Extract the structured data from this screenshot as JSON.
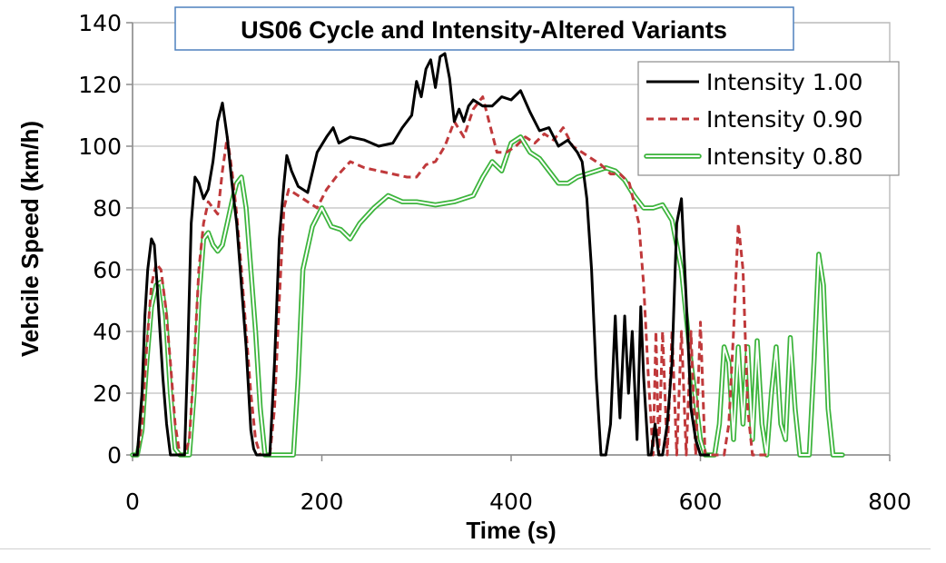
{
  "chart_data": {
    "type": "line",
    "title": "US06 Cycle and Intensity-Altered Variants",
    "xlabel": "Time (s)",
    "ylabel": "Vehcile Speed (km/h)",
    "xlim": [
      0,
      800
    ],
    "ylim": [
      0,
      140
    ],
    "xticks": [
      "0",
      "200",
      "400",
      "600",
      "800"
    ],
    "yticks": [
      "0",
      "20",
      "40",
      "60",
      "80",
      "100",
      "120",
      "140"
    ],
    "grid": "horizontal",
    "legend_position": "top-right",
    "series": [
      {
        "name": "Intensity 1.00",
        "color": "#000000",
        "style": "solid",
        "x": [
          0,
          5,
          10,
          13,
          16,
          20,
          23,
          26,
          29,
          32,
          36,
          40,
          45,
          50,
          55,
          58,
          62,
          66,
          70,
          75,
          80,
          85,
          90,
          95,
          100,
          105,
          110,
          115,
          120,
          125,
          128,
          131,
          135,
          140,
          145,
          150,
          155,
          160,
          163,
          168,
          175,
          185,
          195,
          205,
          212,
          218,
          230,
          245,
          260,
          275,
          285,
          295,
          300,
          305,
          310,
          315,
          320,
          325,
          330,
          335,
          340,
          345,
          350,
          355,
          360,
          370,
          380,
          390,
          400,
          410,
          420,
          430,
          440,
          450,
          460,
          470,
          475,
          480,
          485,
          490,
          495,
          500,
          505,
          510,
          512,
          515,
          520,
          524,
          528,
          533,
          537,
          540,
          545,
          548,
          552,
          556,
          560,
          565,
          570,
          575,
          580,
          585,
          590,
          595,
          600,
          610
        ],
        "y": [
          0,
          0,
          20,
          45,
          60,
          70,
          68,
          55,
          40,
          25,
          10,
          0,
          0,
          0,
          0,
          30,
          75,
          90,
          88,
          83,
          86,
          95,
          108,
          114,
          103,
          88,
          75,
          55,
          35,
          8,
          2,
          0,
          0,
          0,
          0,
          30,
          70,
          88,
          97,
          92,
          87,
          85,
          98,
          103,
          106,
          101,
          103,
          102,
          100,
          101,
          106,
          110,
          121,
          116,
          125,
          128,
          119,
          129,
          130,
          122,
          108,
          112,
          108,
          113,
          115,
          113,
          113,
          116,
          115,
          118,
          111,
          105,
          106,
          100,
          102,
          98,
          95,
          83,
          60,
          25,
          0,
          0,
          10,
          45,
          30,
          12,
          45,
          20,
          40,
          5,
          48,
          25,
          0,
          0,
          10,
          0,
          0,
          10,
          30,
          75,
          83,
          50,
          15,
          5,
          0,
          0
        ]
      },
      {
        "name": "Intensity 0.90",
        "color": "#c0393b",
        "style": "dashed",
        "x": [
          0,
          5,
          10,
          15,
          20,
          25,
          30,
          35,
          40,
          45,
          50,
          55,
          60,
          65,
          70,
          75,
          80,
          85,
          90,
          95,
          100,
          105,
          110,
          115,
          120,
          125,
          130,
          135,
          140,
          145,
          150,
          155,
          160,
          165,
          175,
          185,
          195,
          205,
          215,
          230,
          245,
          260,
          275,
          290,
          300,
          310,
          320,
          330,
          340,
          350,
          360,
          370,
          375,
          385,
          395,
          405,
          415,
          425,
          435,
          445,
          455,
          465,
          475,
          485,
          495,
          505,
          515,
          525,
          535,
          540,
          545,
          550,
          553,
          556,
          560,
          565,
          570,
          575,
          580,
          585,
          590,
          595,
          600,
          605,
          610,
          615,
          620,
          625,
          630,
          635,
          640,
          645,
          650,
          655,
          660,
          665,
          670
        ],
        "y": [
          0,
          0,
          10,
          35,
          55,
          62,
          60,
          48,
          30,
          10,
          0,
          0,
          5,
          30,
          60,
          75,
          82,
          80,
          78,
          92,
          103,
          92,
          78,
          60,
          40,
          20,
          5,
          0,
          0,
          0,
          15,
          50,
          80,
          86,
          84,
          82,
          80,
          86,
          90,
          95,
          93,
          92,
          91,
          90,
          90,
          94,
          95,
          100,
          108,
          103,
          112,
          116,
          110,
          98,
          98,
          100,
          103,
          101,
          104,
          102,
          106,
          100,
          98,
          96,
          94,
          91,
          91,
          88,
          75,
          55,
          25,
          0,
          40,
          0,
          40,
          0,
          40,
          0,
          40,
          0,
          40,
          0,
          43,
          0,
          0,
          0,
          0,
          0,
          10,
          40,
          75,
          60,
          15,
          0,
          0,
          0,
          0
        ]
      },
      {
        "name": "Intensity 0.80",
        "color": "#3cb43c",
        "style": "double",
        "x": [
          0,
          5,
          10,
          15,
          20,
          25,
          30,
          35,
          40,
          45,
          50,
          55,
          60,
          65,
          70,
          75,
          80,
          85,
          90,
          95,
          100,
          105,
          110,
          115,
          120,
          125,
          130,
          135,
          140,
          145,
          150,
          155,
          160,
          165,
          170,
          175,
          180,
          190,
          200,
          210,
          220,
          230,
          240,
          255,
          270,
          285,
          300,
          320,
          340,
          360,
          370,
          380,
          390,
          400,
          410,
          420,
          430,
          440,
          450,
          460,
          470,
          480,
          490,
          500,
          510,
          520,
          530,
          540,
          550,
          560,
          570,
          580,
          590,
          600,
          605,
          610,
          615,
          620,
          625,
          630,
          635,
          640,
          645,
          650,
          655,
          660,
          665,
          670,
          675,
          680,
          685,
          690,
          695,
          700,
          705,
          710,
          715,
          720,
          725,
          730,
          735,
          740,
          745,
          750
        ],
        "y": [
          0,
          0,
          8,
          30,
          48,
          55,
          56,
          45,
          20,
          2,
          0,
          0,
          0,
          20,
          50,
          70,
          72,
          68,
          66,
          68,
          75,
          82,
          88,
          90,
          80,
          60,
          40,
          15,
          0,
          0,
          0,
          0,
          0,
          0,
          0,
          25,
          60,
          74,
          80,
          74,
          73,
          70,
          75,
          80,
          84,
          82,
          82,
          81,
          82,
          84,
          90,
          95,
          92,
          101,
          103,
          98,
          96,
          92,
          88,
          88,
          90,
          91,
          92,
          93,
          92,
          89,
          84,
          80,
          80,
          81,
          76,
          60,
          30,
          5,
          0,
          0,
          0,
          10,
          35,
          30,
          5,
          35,
          10,
          35,
          5,
          37,
          10,
          0,
          20,
          35,
          10,
          5,
          38,
          15,
          0,
          0,
          0,
          30,
          65,
          55,
          15,
          0,
          0,
          0
        ]
      }
    ]
  }
}
